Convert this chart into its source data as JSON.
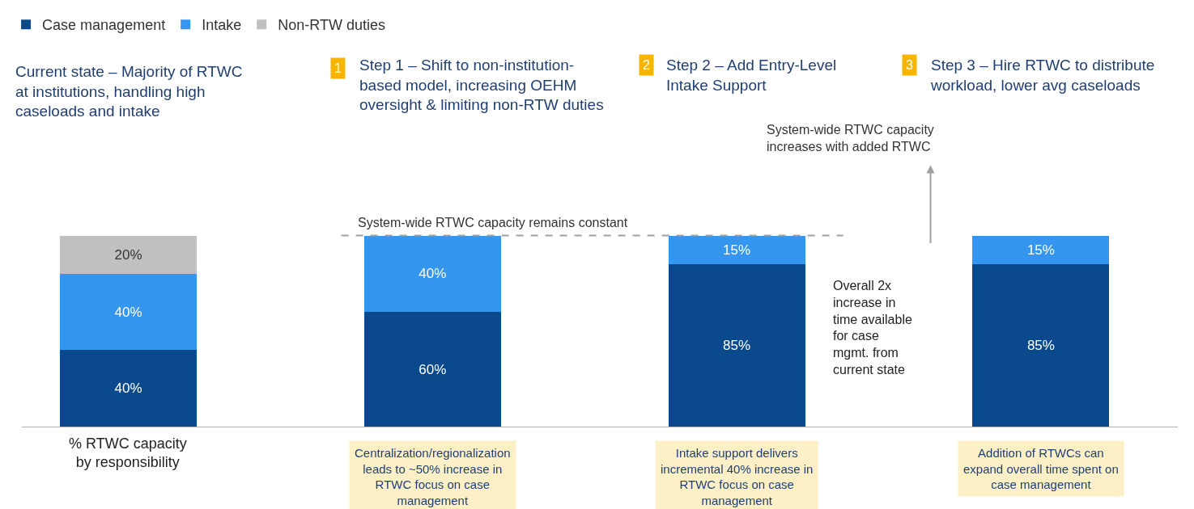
{
  "chart_data": {
    "type": "bar",
    "stacked": true,
    "categories": [
      null,
      null,
      null,
      null
    ],
    "series": [
      {
        "name": "Case management",
        "color": "#0a4a8c",
        "values": [
          40,
          60,
          85,
          85
        ],
        "value_labels": [
          "40%",
          "60%",
          "85%",
          "85%"
        ]
      },
      {
        "name": "Intake",
        "color": "#3596f0",
        "values": [
          40,
          40,
          15,
          15
        ],
        "value_labels": [
          "40%",
          "40%",
          "15%",
          "15%"
        ]
      },
      {
        "name": "Non-RTW duties",
        "color": "#c0c0c0",
        "values": [
          20,
          null,
          null,
          null
        ],
        "value_labels": [
          "20%",
          null,
          null,
          null
        ]
      }
    ],
    "legend": "top left",
    "ref_lines": [
      {
        "axis": "y",
        "value": 100,
        "label": "System-wide RTWC capacity remains constant",
        "color": "#a0a0a0",
        "line_style": "dashed"
      }
    ],
    "annotations": [
      "Current state – Majority of RTWC\nat institutions, handling high\ncaseloads and intake",
      "Step 1 – Shift to non-institution-\nbased model, increasing OEHM\noversight & limiting non-RTW duties",
      "Step 2 – Add Entry-Level\nIntake Support",
      "Step 3 – Hire RTWC to distribute\nworkload, lower avg caseloads",
      "1",
      "2",
      "3",
      "Centralization/regionalization\nleads to ~50% increase in\nRTWC focus on case\nmanagement",
      "Intake support delivers\nincremental 40% increase in\nRTWC focus on case\nmanagement",
      "Addition of RTWCs can\nexpand overall time spent on\ncase management",
      "Overall 2x\nincrease in\ntime available\nfor case\nmgmt. from\ncurrent state",
      "% RTWC capacity\nby responsibility",
      "System-wide RTWC capacity\nincreases with added RTWC"
    ]
  }
}
